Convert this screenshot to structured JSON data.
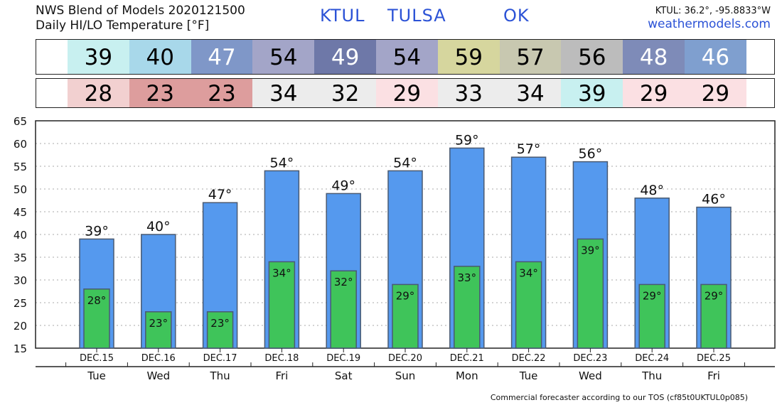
{
  "header": {
    "line1": "NWS Blend of Models 2020121500",
    "line2": "Daily HI/LO Temperature [°F]",
    "station_id": "KTUL",
    "city": "TULSA",
    "state": "OK",
    "coords": "KTUL: 36.2°, -95.8833°W",
    "site": "weathermodels.com"
  },
  "footer": {
    "text": "Commercial forecaster according to our TOS (cf85t0UKTUL0p085)"
  },
  "hi_strip": {
    "values": [
      "39",
      "40",
      "47",
      "54",
      "49",
      "54",
      "59",
      "57",
      "56",
      "48",
      "46"
    ],
    "colors": [
      "#c8f0f0",
      "#a8d8ea",
      "#7f97c8",
      "#a3a5c8",
      "#6e78a8",
      "#a3a5c8",
      "#d6d69e",
      "#c8c8b0",
      "#bcbcbc",
      "#7e8bb8",
      "#7f9fcf"
    ],
    "text_colors": [
      "#000",
      "#000",
      "#fff",
      "#000",
      "#fff",
      "#000",
      "#000",
      "#000",
      "#000",
      "#fff",
      "#fff"
    ]
  },
  "lo_strip": {
    "values": [
      "28",
      "23",
      "23",
      "34",
      "32",
      "29",
      "33",
      "34",
      "39",
      "29",
      "29"
    ],
    "colors": [
      "#f2d0d0",
      "#dd9d9d",
      "#dd9d9d",
      "#ececec",
      "#ececec",
      "#fbe0e3",
      "#ececec",
      "#ececec",
      "#c8f0f0",
      "#fbe0e3",
      "#fbe0e3"
    ]
  },
  "chart_data": {
    "type": "bar",
    "categories": [
      "DEC.15",
      "DEC.16",
      "DEC.17",
      "DEC.18",
      "DEC.19",
      "DEC.20",
      "DEC.21",
      "DEC.22",
      "DEC.23",
      "DEC.24",
      "DEC.25"
    ],
    "weekdays": [
      "Tue",
      "Wed",
      "Thu",
      "Fri",
      "Sat",
      "Sun",
      "Mon",
      "Tue",
      "Wed",
      "Thu",
      "Fri"
    ],
    "series": [
      {
        "values": [
          39,
          40,
          47,
          54,
          49,
          54,
          59,
          57,
          56,
          48,
          46
        ],
        "color": "#5599ee"
      },
      {
        "values": [
          28,
          23,
          23,
          34,
          32,
          29,
          33,
          34,
          39,
          29,
          29
        ],
        "color": "#3fc45a"
      }
    ],
    "hi_labels": [
      "39°",
      "40°",
      "47°",
      "54°",
      "49°",
      "54°",
      "59°",
      "57°",
      "56°",
      "48°",
      "46°"
    ],
    "lo_labels": [
      "28°",
      "23°",
      "23°",
      "34°",
      "32°",
      "29°",
      "33°",
      "34°",
      "39°",
      "29°",
      "29°"
    ],
    "ylim": [
      15,
      65
    ],
    "yticks": [
      "15",
      "20",
      "25",
      "30",
      "35",
      "40",
      "45",
      "50",
      "55",
      "60",
      "65"
    ],
    "grid": true
  }
}
